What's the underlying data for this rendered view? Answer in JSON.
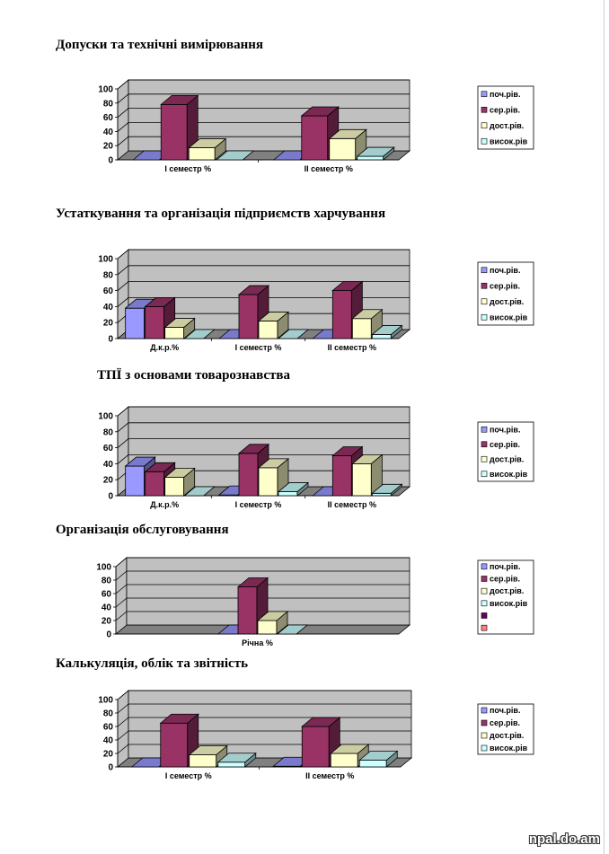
{
  "colors": {
    "wall": "#c0c0c0",
    "floor": "#808080",
    "series": [
      "#9999ff",
      "#993366",
      "#ffffcc",
      "#ccffff",
      "#660066",
      "#ff8080"
    ]
  },
  "watermark": "npal.do.am",
  "chart_data": [
    {
      "type": "bar",
      "title": "Допуски та технічні вимірювання",
      "categories": [
        "І семестр %",
        "ІІ семестр %"
      ],
      "ylim": [
        0,
        100
      ],
      "yticks": [
        "0",
        "20",
        "40",
        "60",
        "80",
        "100"
      ],
      "legend": [
        "поч.рів.",
        "сер.рів.",
        "дост.рів.",
        "висок.рів"
      ],
      "legend_position": "right",
      "series": [
        {
          "name": "поч.рів.",
          "values": [
            0,
            0
          ]
        },
        {
          "name": "сер.рів.",
          "values": [
            78,
            62
          ]
        },
        {
          "name": "дост.рів.",
          "values": [
            17,
            30
          ]
        },
        {
          "name": "висок.рів",
          "values": [
            0,
            5
          ]
        }
      ]
    },
    {
      "type": "bar",
      "title": "Устаткування та організація підприємств харчування",
      "categories": [
        "Д.к.р.%",
        "І семестр %",
        "ІІ семестр %"
      ],
      "ylim": [
        0,
        100
      ],
      "yticks": [
        "0",
        "20",
        "40",
        "60",
        "80",
        "100"
      ],
      "legend": [
        "поч.рів.",
        "сер.рів.",
        "дост.рів.",
        "висок.рів"
      ],
      "legend_position": "right",
      "series": [
        {
          "name": "поч.рів.",
          "values": [
            38,
            0,
            0
          ]
        },
        {
          "name": "сер.рів.",
          "values": [
            40,
            55,
            60
          ]
        },
        {
          "name": "дост.рів.",
          "values": [
            14,
            22,
            25
          ]
        },
        {
          "name": "висок.рів",
          "values": [
            0,
            0,
            5
          ]
        }
      ]
    },
    {
      "type": "bar",
      "title": "ТПЇ з основами товарознавства",
      "categories": [
        "Д.к.р.%",
        "І семестр %",
        "ІІ семестр %"
      ],
      "ylim": [
        0,
        100
      ],
      "yticks": [
        "0",
        "20",
        "40",
        "60",
        "80",
        "100"
      ],
      "legend": [
        "поч.рів.",
        "сер.рів.",
        "дост.рів.",
        "висок.рів"
      ],
      "legend_position": "right",
      "series": [
        {
          "name": "поч.рів.",
          "values": [
            37,
            1,
            0
          ]
        },
        {
          "name": "сер.рів.",
          "values": [
            30,
            53,
            50
          ]
        },
        {
          "name": "дост.рів.",
          "values": [
            23,
            35,
            40
          ]
        },
        {
          "name": "висок.рів",
          "values": [
            0,
            5,
            3
          ]
        }
      ]
    },
    {
      "type": "bar",
      "title": "Організація  обслуговування",
      "categories": [
        "Річна %"
      ],
      "ylim": [
        0,
        100
      ],
      "yticks": [
        "0",
        "20",
        "40",
        "60",
        "80",
        "100"
      ],
      "legend": [
        "поч.рів.",
        "сер.рів.",
        "дост.рів.",
        "висок.рів",
        "",
        ""
      ],
      "legend_position": "right",
      "series": [
        {
          "name": "поч.рів.",
          "values": [
            0
          ]
        },
        {
          "name": "сер.рів.",
          "values": [
            70
          ]
        },
        {
          "name": "дост.рів.",
          "values": [
            20
          ]
        },
        {
          "name": "висок.рів",
          "values": [
            0
          ]
        }
      ]
    },
    {
      "type": "bar",
      "title": "Калькуляція, облік та звітність",
      "categories": [
        "І семестр %",
        "ІІ семестр %"
      ],
      "ylim": [
        0,
        100
      ],
      "yticks": [
        "0",
        "20",
        "40",
        "60",
        "80",
        "100"
      ],
      "legend": [
        "поч.рів.",
        "сер.рів.",
        "дост.рів.",
        "висок.рів"
      ],
      "legend_position": "right",
      "series": [
        {
          "name": "поч.рів.",
          "values": [
            0,
            1
          ]
        },
        {
          "name": "сер.рів.",
          "values": [
            65,
            60
          ]
        },
        {
          "name": "дост.рів.",
          "values": [
            18,
            20
          ]
        },
        {
          "name": "висок.рів",
          "values": [
            7,
            10
          ]
        }
      ]
    }
  ]
}
